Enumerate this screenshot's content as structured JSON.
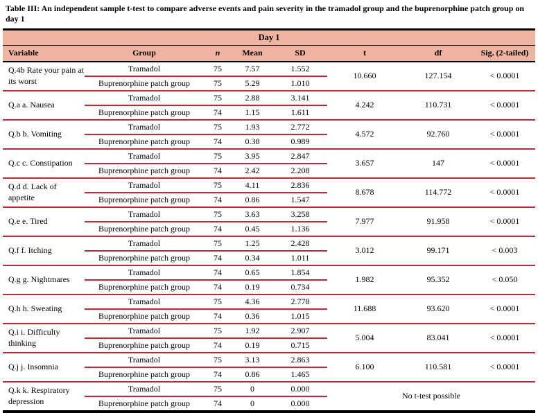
{
  "caption": "Table III: An independent sample t-test to compare adverse events and pain severity in the tramadol group and the buprenorphine patch group on day 1",
  "colors": {
    "header_bg": "#eeb4a0",
    "rule_red": "#c02a33",
    "border_black": "#000000"
  },
  "table": {
    "day_header": "Day 1",
    "columns": [
      "Variable",
      "Group",
      "n",
      "Mean",
      "SD",
      "t",
      "df",
      "Sig. (2-tailed)"
    ],
    "no_test_label": "No t-test possible",
    "groups": [
      {
        "variable": "Q.4b Rate your pain at its worst",
        "rows": [
          {
            "group": "Tramadol",
            "n": "75",
            "mean": "7.57",
            "sd": "1.552"
          },
          {
            "group": "Buprenorphine patch group",
            "n": "75",
            "mean": "5.29",
            "sd": "1.010"
          }
        ],
        "t": "10.660",
        "df": "127.154",
        "sig": "< 0.0001"
      },
      {
        "variable": "Q.a a. Nausea",
        "rows": [
          {
            "group": "Tramadol",
            "n": "75",
            "mean": "2.88",
            "sd": "3.141"
          },
          {
            "group": "Buprenorphine patch group",
            "n": "74",
            "mean": "1.15",
            "sd": "1.611"
          }
        ],
        "t": "4.242",
        "df": "110.731",
        "sig": "< 0.0001"
      },
      {
        "variable": "Q.b b. Vomiting",
        "rows": [
          {
            "group": "Tramadol",
            "n": "75",
            "mean": "1.93",
            "sd": "2.772"
          },
          {
            "group": "Buprenorphine patch group",
            "n": "74",
            "mean": "0.38",
            "sd": "0.989"
          }
        ],
        "t": "4.572",
        "df": "92.760",
        "sig": "< 0.0001"
      },
      {
        "variable": "Q.c c. Constipation",
        "rows": [
          {
            "group": "Tramadol",
            "n": "75",
            "mean": "3.95",
            "sd": "2.847"
          },
          {
            "group": "Buprenorphine patch group",
            "n": "74",
            "mean": "2.42",
            "sd": "2.208"
          }
        ],
        "t": "3.657",
        "df": "147",
        "sig": "< 0.0001"
      },
      {
        "variable": "Q.d d. Lack of appetite",
        "rows": [
          {
            "group": "Tramadol",
            "n": "75",
            "mean": "4.11",
            "sd": "2.836"
          },
          {
            "group": "Buprenorphine patch group",
            "n": "74",
            "mean": "0.86",
            "sd": "1.547"
          }
        ],
        "t": "8.678",
        "df": "114.772",
        "sig": "< 0.0001"
      },
      {
        "variable": "Q.e e. Tired",
        "rows": [
          {
            "group": "Tramadol",
            "n": "75",
            "mean": "3.63",
            "sd": "3.258"
          },
          {
            "group": "Buprenorphine patch group",
            "n": "74",
            "mean": "0.45",
            "sd": "1.136"
          }
        ],
        "t": "7.977",
        "df": "91.958",
        "sig": "< 0.0001"
      },
      {
        "variable": "Q.f f. Itching",
        "rows": [
          {
            "group": "Tramadol",
            "n": "75",
            "mean": "1.25",
            "sd": "2.428"
          },
          {
            "group": "Buprenorphine patch group",
            "n": "74",
            "mean": "0.34",
            "sd": "1.011"
          }
        ],
        "t": "3.012",
        "df": "99.171",
        "sig": "< 0.003"
      },
      {
        "variable": "Q.g g. Nightmares",
        "rows": [
          {
            "group": "Tramadol",
            "n": "74",
            "mean": "0.65",
            "sd": "1.854"
          },
          {
            "group": "Buprenorphine patch group",
            "n": "74",
            "mean": "0.19",
            "sd": "0.734"
          }
        ],
        "t": "1.982",
        "df": "95.352",
        "sig": "< 0.050"
      },
      {
        "variable": "Q.h h. Sweating",
        "rows": [
          {
            "group": "Tramadol",
            "n": "75",
            "mean": "4.36",
            "sd": "2.778"
          },
          {
            "group": "Buprenorphine patch group",
            "n": "74",
            "mean": "0.36",
            "sd": "1.015"
          }
        ],
        "t": "11.688",
        "df": "93.620",
        "sig": "< 0.0001"
      },
      {
        "variable": "Q.i i. Difficulty thinking",
        "rows": [
          {
            "group": "Tramadol",
            "n": "75",
            "mean": "1.92",
            "sd": "2.907"
          },
          {
            "group": "Buprenorphine patch group",
            "n": "74",
            "mean": "0.19",
            "sd": "0.715"
          }
        ],
        "t": "5.004",
        "df": "83.041",
        "sig": "< 0.0001"
      },
      {
        "variable": "Q.j j. Insomnia",
        "rows": [
          {
            "group": "Tramadol",
            "n": "75",
            "mean": "3.13",
            "sd": "2.863"
          },
          {
            "group": "Buprenorphine patch group",
            "n": "74",
            "mean": "0.86",
            "sd": "1.465"
          }
        ],
        "t": "6.100",
        "df": "110.581",
        "sig": "< 0.0001"
      },
      {
        "variable": "Q.k k. Respiratory depression",
        "rows": [
          {
            "group": "Tramadol",
            "n": "75",
            "mean": "0",
            "sd": "0.000"
          },
          {
            "group": "Buprenorphine patch group",
            "n": "74",
            "mean": "0",
            "sd": "0.000"
          }
        ],
        "note": "No t-test possible"
      }
    ]
  }
}
